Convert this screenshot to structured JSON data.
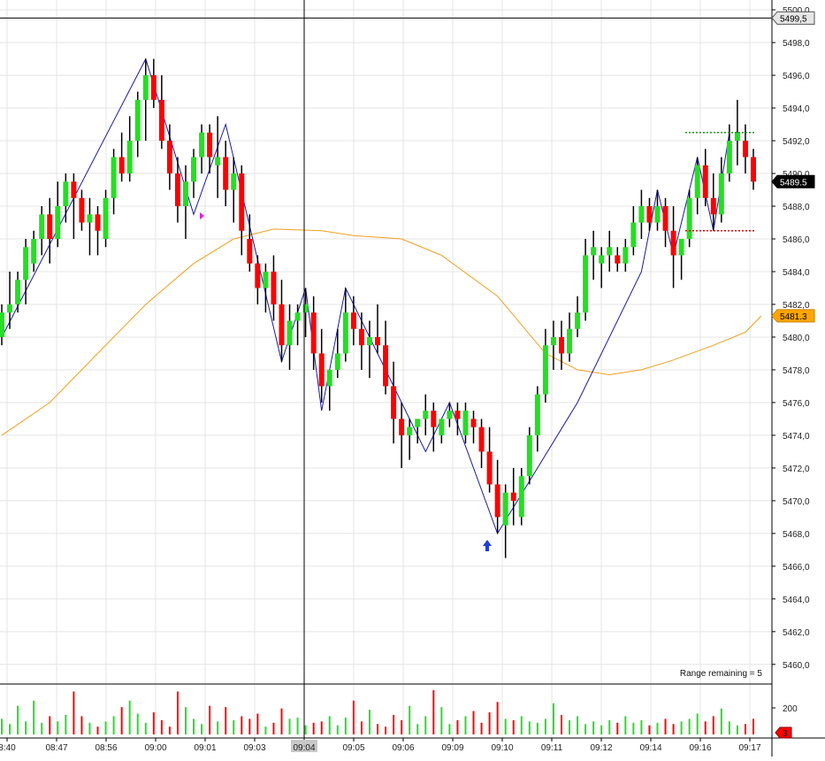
{
  "chart_data": {
    "type": "candlestick",
    "price_axis": {
      "ticks": [
        "5500,0",
        "5498,0",
        "5496,0",
        "5494,0",
        "5492,0",
        "5490,0",
        "5488,0",
        "5486,0",
        "5484,0",
        "5482,0",
        "5480,0",
        "5478,0",
        "5476,0",
        "5474,0",
        "5472,0",
        "5470,0",
        "5468,0",
        "5466,0",
        "5464,0",
        "5462,0",
        "5460,0"
      ],
      "range": [
        5458.8,
        5500.6
      ],
      "grid": true
    },
    "time_axis": {
      "labels": [
        "8:40",
        "08:47",
        "08:56",
        "09:00",
        "09:01",
        "09:03",
        "09:04",
        "09:05",
        "09:06",
        "09:09",
        "09:10",
        "09:11",
        "09:12",
        "09:14",
        "09:16",
        "09:17"
      ],
      "highlight": "09:04"
    },
    "price_tags": [
      {
        "label": "5499,5",
        "value": 5499.5,
        "bg": "#e6e6e6",
        "fg": "#000000",
        "border": "#555555"
      },
      {
        "label": "5489.5",
        "value": 5489.5,
        "bg": "#000000",
        "fg": "#ffffff",
        "border": "#000000"
      },
      {
        "label": "5481.3",
        "value": 5481.3,
        "bg": "#ffa500",
        "fg": "#000000",
        "border": "#cc8400"
      }
    ],
    "volume_axis": {
      "ticks": [
        "200"
      ],
      "badge": "3"
    },
    "crosshair": {
      "price": 5499.5,
      "time_label": "09:04"
    },
    "annotation": "Range remaining = 5",
    "levels": [
      {
        "value": 5492.5,
        "color": "#1a9a1a",
        "style": "dotted"
      },
      {
        "value": 5486.5,
        "color": "#e00000",
        "style": "dotted"
      }
    ],
    "candles": [
      [
        5480.0,
        5482.0,
        5479.5,
        5481.5
      ],
      [
        5481.5,
        5484.0,
        5480.5,
        5482.0
      ],
      [
        5482.0,
        5484.0,
        5481.5,
        5483.5
      ],
      [
        5483.5,
        5486.0,
        5482.0,
        5485.5
      ],
      [
        5484.5,
        5486.5,
        5484.0,
        5486.0
      ],
      [
        5486.0,
        5488.0,
        5485.0,
        5487.5
      ],
      [
        5487.5,
        5488.5,
        5484.5,
        5486.0
      ],
      [
        5486.0,
        5489.5,
        5485.5,
        5488.0
      ],
      [
        5488.0,
        5490.0,
        5487.0,
        5489.5
      ],
      [
        5489.5,
        5490.0,
        5486.0,
        5488.5
      ],
      [
        5488.5,
        5489.0,
        5486.5,
        5487.0
      ],
      [
        5487.0,
        5488.5,
        5485.0,
        5487.5
      ],
      [
        5487.5,
        5488.0,
        5485.0,
        5486.5
      ],
      [
        5486.0,
        5489.0,
        5485.5,
        5488.5
      ],
      [
        5488.5,
        5491.5,
        5487.5,
        5491.0
      ],
      [
        5491.0,
        5492.5,
        5489.5,
        5490.0
      ],
      [
        5490.0,
        5493.5,
        5489.5,
        5492.0
      ],
      [
        5492.0,
        5495.0,
        5491.0,
        5494.5
      ],
      [
        5494.5,
        5497.0,
        5492.0,
        5496.0
      ],
      [
        5496.0,
        5497.0,
        5494.0,
        5494.5
      ],
      [
        5494.5,
        5496.0,
        5491.5,
        5492.0
      ],
      [
        5492.0,
        5493.0,
        5489.0,
        5490.0
      ],
      [
        5490.0,
        5491.0,
        5487.0,
        5488.0
      ],
      [
        5488.0,
        5490.5,
        5486.0,
        5489.5
      ],
      [
        5489.5,
        5491.5,
        5488.5,
        5491.0
      ],
      [
        5491.0,
        5493.0,
        5490.0,
        5492.5
      ],
      [
        5492.5,
        5493.0,
        5490.0,
        5491.0
      ],
      [
        5490.5,
        5493.5,
        5488.5,
        5491.0
      ],
      [
        5491.0,
        5492.0,
        5488.0,
        5489.0
      ],
      [
        5489.0,
        5491.0,
        5487.0,
        5490.0
      ],
      [
        5490.0,
        5490.5,
        5485.0,
        5486.5
      ],
      [
        5486.0,
        5487.5,
        5484.0,
        5484.5
      ],
      [
        5484.5,
        5485.0,
        5482.0,
        5483.0
      ],
      [
        5483.0,
        5484.5,
        5481.5,
        5484.0
      ],
      [
        5484.0,
        5485.0,
        5481.0,
        5482.0
      ],
      [
        5482.0,
        5483.5,
        5478.5,
        5479.5
      ],
      [
        5479.5,
        5482.0,
        5478.0,
        5481.0
      ],
      [
        5481.0,
        5482.0,
        5479.5,
        5481.5
      ],
      [
        5481.5,
        5483.0,
        5480.0,
        5482.0
      ],
      [
        5481.5,
        5482.5,
        5478.0,
        5479.0
      ],
      [
        5479.0,
        5480.5,
        5476.0,
        5477.0
      ],
      [
        5477.0,
        5478.0,
        5475.5,
        5478.0
      ],
      [
        5478.0,
        5480.5,
        5477.5,
        5479.0
      ],
      [
        5479.0,
        5483.0,
        5478.5,
        5481.5
      ],
      [
        5481.5,
        5482.5,
        5479.5,
        5480.5
      ],
      [
        5480.5,
        5481.5,
        5478.0,
        5479.5
      ],
      [
        5479.5,
        5481.0,
        5477.5,
        5480.0
      ],
      [
        5480.0,
        5482.0,
        5479.0,
        5479.5
      ],
      [
        5479.5,
        5481.0,
        5476.5,
        5477.0
      ],
      [
        5477.0,
        5478.5,
        5473.5,
        5475.0
      ],
      [
        5475.0,
        5476.0,
        5472.0,
        5474.0
      ],
      [
        5474.0,
        5475.0,
        5472.5,
        5474.5
      ],
      [
        5474.5,
        5475.0,
        5473.5,
        5475.0
      ],
      [
        5475.0,
        5476.5,
        5474.0,
        5475.5
      ],
      [
        5475.5,
        5476.0,
        5473.0,
        5474.5
      ],
      [
        5474.0,
        5475.0,
        5473.5,
        5475.0
      ],
      [
        5475.0,
        5476.0,
        5474.5,
        5475.5
      ],
      [
        5475.5,
        5476.0,
        5474.0,
        5475.0
      ],
      [
        5474.0,
        5476.0,
        5473.5,
        5475.5
      ],
      [
        5475.0,
        5475.5,
        5473.5,
        5474.5
      ],
      [
        5474.5,
        5475.0,
        5472.0,
        5473.0
      ],
      [
        5473.0,
        5474.5,
        5470.5,
        5471.0
      ],
      [
        5471.0,
        5472.5,
        5468.0,
        5469.0
      ],
      [
        5468.5,
        5471.0,
        5466.5,
        5470.5
      ],
      [
        5470.5,
        5472.0,
        5468.5,
        5470.0
      ],
      [
        5469.0,
        5472.0,
        5468.5,
        5471.5
      ],
      [
        5471.5,
        5474.5,
        5471.0,
        5474.0
      ],
      [
        5474.0,
        5477.0,
        5473.0,
        5476.5
      ],
      [
        5476.5,
        5480.5,
        5476.0,
        5479.5
      ],
      [
        5479.5,
        5481.0,
        5478.0,
        5480.0
      ],
      [
        5480.0,
        5481.0,
        5478.0,
        5479.0
      ],
      [
        5479.0,
        5481.5,
        5478.5,
        5480.5
      ],
      [
        5480.5,
        5482.5,
        5480.0,
        5481.5
      ],
      [
        5481.5,
        5486.0,
        5481.0,
        5485.0
      ],
      [
        5485.0,
        5486.5,
        5483.5,
        5485.5
      ],
      [
        5484.5,
        5485.5,
        5483.0,
        5485.0
      ],
      [
        5485.0,
        5486.5,
        5484.0,
        5485.5
      ],
      [
        5485.0,
        5485.5,
        5484.0,
        5484.5
      ],
      [
        5484.5,
        5486.0,
        5484.0,
        5485.5
      ],
      [
        5485.5,
        5488.0,
        5485.0,
        5487.0
      ],
      [
        5487.0,
        5489.0,
        5486.0,
        5488.0
      ],
      [
        5488.0,
        5488.5,
        5486.5,
        5487.0
      ],
      [
        5487.0,
        5489.0,
        5486.5,
        5488.0
      ],
      [
        5488.0,
        5488.5,
        5485.5,
        5486.5
      ],
      [
        5486.5,
        5488.0,
        5483.0,
        5485.0
      ],
      [
        5485.0,
        5486.0,
        5483.5,
        5486.0
      ],
      [
        5486.0,
        5489.0,
        5485.5,
        5488.5
      ],
      [
        5488.5,
        5491.0,
        5487.5,
        5490.5
      ],
      [
        5490.5,
        5491.5,
        5488.0,
        5488.5
      ],
      [
        5488.5,
        5490.0,
        5486.5,
        5487.5
      ],
      [
        5487.5,
        5491.0,
        5487.0,
        5490.0
      ],
      [
        5490.0,
        5493.0,
        5489.5,
        5492.0
      ],
      [
        5492.0,
        5494.5,
        5490.5,
        5492.5
      ],
      [
        5492.0,
        5493.0,
        5490.0,
        5491.0
      ],
      [
        5491.0,
        5491.5,
        5489.0,
        5489.5
      ]
    ],
    "volumes": [
      12,
      8,
      22,
      10,
      26,
      9,
      14,
      10,
      15,
      33,
      14,
      9,
      6,
      10,
      14,
      21,
      26,
      16,
      9,
      17,
      11,
      6,
      33,
      21,
      12,
      8,
      22,
      10,
      21,
      11,
      14,
      12,
      16,
      6,
      9,
      20,
      12,
      13,
      7,
      9,
      10,
      14,
      7,
      13,
      26,
      10,
      19,
      8,
      6,
      15,
      11,
      22,
      8,
      14,
      34,
      21,
      8,
      11,
      14,
      18,
      9,
      17,
      25,
      12,
      11,
      14,
      10,
      9,
      12,
      24,
      15,
      11,
      14,
      8,
      10,
      7,
      11,
      9,
      14,
      9,
      11,
      7,
      9,
      12,
      8,
      10,
      12,
      16,
      10,
      14,
      20,
      10,
      7,
      8,
      12
    ],
    "sma": [
      [
        0,
        5474.0
      ],
      [
        6,
        5476.0
      ],
      [
        12,
        5479.0
      ],
      [
        18,
        5482.0
      ],
      [
        24,
        5484.5
      ],
      [
        29,
        5486.0
      ],
      [
        34,
        5486.6
      ],
      [
        40,
        5486.5
      ],
      [
        44,
        5486.2
      ],
      [
        50,
        5486.0
      ],
      [
        55,
        5485.0
      ],
      [
        62,
        5482.5
      ],
      [
        68,
        5479.0
      ],
      [
        72,
        5478.0
      ],
      [
        76,
        5477.7
      ],
      [
        80,
        5478.0
      ],
      [
        84,
        5478.6
      ],
      [
        89,
        5479.5
      ],
      [
        93,
        5480.3
      ],
      [
        95,
        5481.3
      ]
    ],
    "zigzag": [
      [
        0,
        5480.0
      ],
      [
        18,
        5497.0
      ],
      [
        24,
        5487.5
      ],
      [
        28,
        5493.0
      ],
      [
        35,
        5478.5
      ],
      [
        38,
        5483.0
      ],
      [
        40,
        5475.5
      ],
      [
        43,
        5483.0
      ],
      [
        53,
        5473.0
      ],
      [
        56,
        5476.0
      ],
      [
        62,
        5468.0
      ],
      [
        72,
        5476.0
      ],
      [
        80,
        5484.0
      ],
      [
        82,
        5489.0
      ],
      [
        84,
        5485.0
      ],
      [
        87,
        5491.0
      ],
      [
        89,
        5486.5
      ],
      [
        91,
        5492.5
      ]
    ]
  }
}
